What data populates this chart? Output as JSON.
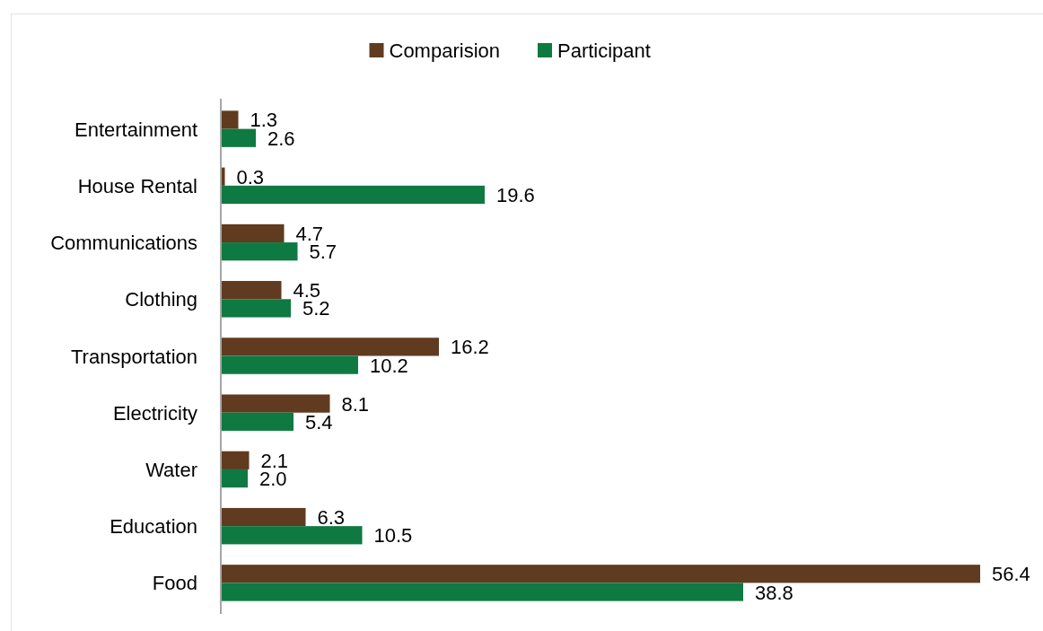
{
  "chart_data": {
    "type": "bar",
    "orientation": "horizontal",
    "legend": "top",
    "categories": [
      "Entertainment",
      "House Rental",
      "Communications",
      "Clothing",
      "Transportation",
      "Electricity",
      "Water",
      "Education",
      "Food"
    ],
    "series": [
      {
        "name": "Comparision",
        "color": "#603b1f",
        "values": [
          1.3,
          0.3,
          4.7,
          4.5,
          16.2,
          8.1,
          2.1,
          6.3,
          56.4
        ],
        "value_labels": [
          "1.3",
          "0.3",
          "4.7",
          "4.5",
          "16.2",
          "8.1",
          "2.1",
          "6.3",
          "56.4"
        ]
      },
      {
        "name": "Participant",
        "color": "#0e7a41",
        "values": [
          2.6,
          19.6,
          5.7,
          5.2,
          10.2,
          5.4,
          2.0,
          10.5,
          38.8
        ],
        "value_labels": [
          "2.6",
          "19.6",
          "5.7",
          "5.2",
          "10.2",
          "5.4",
          "2.0",
          "10.5",
          "38.8"
        ]
      }
    ]
  }
}
